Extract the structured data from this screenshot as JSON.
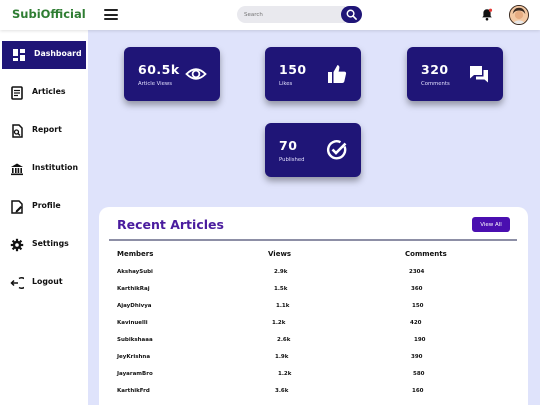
{
  "header": {
    "logo": "SubiOfficial",
    "search_placeholder": "Search"
  },
  "sidebar": {
    "items": [
      {
        "label": "Dashboard",
        "icon": "dashboard-icon",
        "active": true
      },
      {
        "label": "Articles",
        "icon": "articles-icon"
      },
      {
        "label": "Report",
        "icon": "report-icon"
      },
      {
        "label": "Institution",
        "icon": "institution-icon"
      },
      {
        "label": "Profile",
        "icon": "profile-icon"
      },
      {
        "label": "Settings",
        "icon": "gear-icon"
      },
      {
        "label": "Logout",
        "icon": "logout-icon"
      }
    ]
  },
  "stats": [
    {
      "value": "60.5k",
      "caption": "Article Views",
      "icon": "eye-icon"
    },
    {
      "value": "150",
      "caption": "Likes",
      "icon": "thumbs-up-icon"
    },
    {
      "value": "320",
      "caption": "Comments",
      "icon": "comments-icon"
    },
    {
      "value": "70",
      "caption": "Published",
      "icon": "check-circle-icon"
    }
  ],
  "recent": {
    "title": "Recent Articles",
    "view_all": "View All",
    "columns": [
      "Members",
      "Views",
      "Comments"
    ],
    "rows": [
      [
        "AkshaySubi",
        "2.9k",
        "2304"
      ],
      [
        "KarthikRaj",
        "1.5k",
        "360"
      ],
      [
        "AjayDhivya",
        "1.1k",
        "150"
      ],
      [
        "Kavinuelli",
        "1.2k",
        "420"
      ],
      [
        "Subikshaaa",
        "2.6k",
        "190"
      ],
      [
        "JeyKrishna",
        "1.9k",
        "390"
      ],
      [
        "JayaramBro",
        "1.2k",
        "580"
      ],
      [
        "KarthikFrd",
        "3.6k",
        "160"
      ]
    ]
  },
  "colors": {
    "primary": "#1f1577",
    "logo": "#2e7d32",
    "background": "#dfe3fb",
    "accent": "#4a0fb0"
  }
}
